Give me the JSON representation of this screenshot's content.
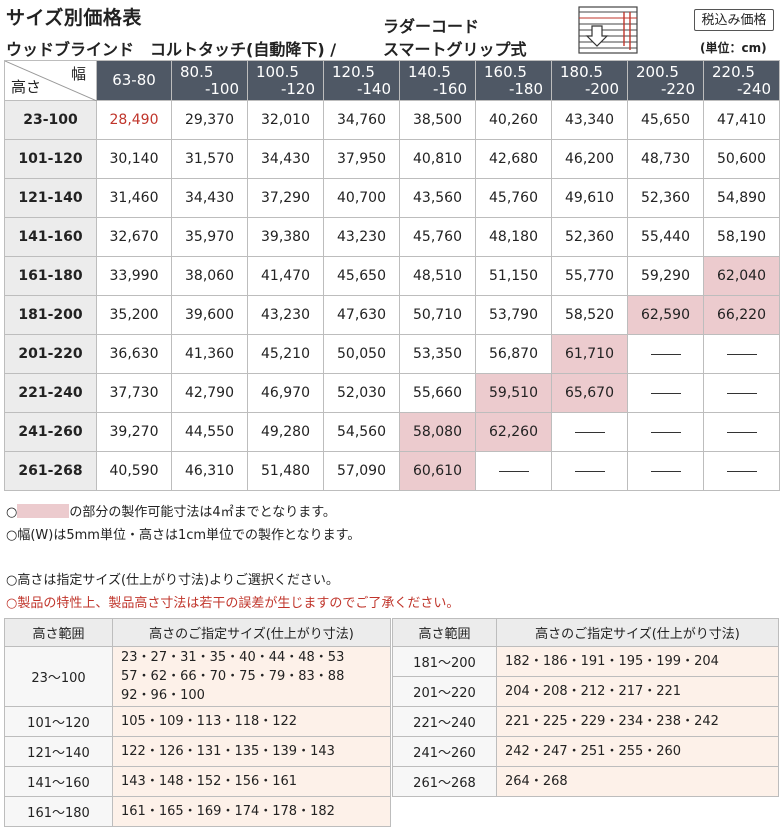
{
  "header": {
    "title": "サイズ別価格表",
    "subtitle": "ウッドブラインド　コルトタッチ(自動降下) /",
    "ladder": "ラダーコード",
    "smart": "スマートグリップ式",
    "tax_badge": "税込み価格",
    "unit": "(単位：cm)"
  },
  "price_table": {
    "corner_width_label": "幅",
    "corner_height_label": "高さ",
    "width_headers": [
      {
        "l1": "63-80",
        "l2": ""
      },
      {
        "l1": "80.5",
        "l2": "-100"
      },
      {
        "l1": "100.5",
        "l2": "-120"
      },
      {
        "l1": "120.5",
        "l2": "-140"
      },
      {
        "l1": "140.5",
        "l2": "-160"
      },
      {
        "l1": "160.5",
        "l2": "-180"
      },
      {
        "l1": "180.5",
        "l2": "-200"
      },
      {
        "l1": "200.5",
        "l2": "-220"
      },
      {
        "l1": "220.5",
        "l2": "-240"
      }
    ],
    "rows": [
      {
        "height": "23-100",
        "prices": [
          "28,490",
          "29,370",
          "32,010",
          "34,760",
          "38,500",
          "40,260",
          "43,340",
          "45,650",
          "47,410"
        ]
      },
      {
        "height": "101-120",
        "prices": [
          "30,140",
          "31,570",
          "34,430",
          "37,950",
          "40,810",
          "42,680",
          "46,200",
          "48,730",
          "50,600"
        ]
      },
      {
        "height": "121-140",
        "prices": [
          "31,460",
          "34,430",
          "37,290",
          "40,700",
          "43,560",
          "45,760",
          "49,610",
          "52,360",
          "54,890"
        ]
      },
      {
        "height": "141-160",
        "prices": [
          "32,670",
          "35,970",
          "39,380",
          "43,230",
          "45,760",
          "48,180",
          "52,360",
          "55,440",
          "58,190"
        ]
      },
      {
        "height": "161-180",
        "prices": [
          "33,990",
          "38,060",
          "41,470",
          "45,650",
          "48,510",
          "51,150",
          "55,770",
          "59,290",
          "62,040"
        ]
      },
      {
        "height": "181-200",
        "prices": [
          "35,200",
          "39,600",
          "43,230",
          "47,630",
          "50,710",
          "53,790",
          "58,520",
          "62,590",
          "66,220"
        ]
      },
      {
        "height": "201-220",
        "prices": [
          "36,630",
          "41,360",
          "45,210",
          "50,050",
          "53,350",
          "56,870",
          "61,710",
          "",
          ""
        ]
      },
      {
        "height": "221-240",
        "prices": [
          "37,730",
          "42,790",
          "46,970",
          "52,030",
          "55,660",
          "59,510",
          "65,670",
          "",
          ""
        ]
      },
      {
        "height": "241-260",
        "prices": [
          "39,270",
          "44,550",
          "49,280",
          "54,560",
          "58,080",
          "62,260",
          "",
          "",
          ""
        ]
      },
      {
        "height": "261-268",
        "prices": [
          "40,590",
          "46,310",
          "51,480",
          "57,090",
          "60,610",
          "",
          "",
          "",
          ""
        ]
      }
    ],
    "pink_cells": [
      [
        4,
        8
      ],
      [
        5,
        7
      ],
      [
        5,
        8
      ],
      [
        6,
        6
      ],
      [
        7,
        5
      ],
      [
        7,
        6
      ],
      [
        8,
        4
      ],
      [
        8,
        5
      ],
      [
        9,
        4
      ]
    ],
    "red_cells": [
      [
        0,
        0
      ]
    ],
    "colors": {
      "header_bg": "#4f5865",
      "pink": "#eccbce",
      "red_text": "#c0352b"
    }
  },
  "notes": {
    "n1_prefix": "○",
    "n1_suffix": "の部分の製作可能寸法は4㎡までとなります。",
    "n2": "○幅(W)は5mm単位・高さは1cm単位での製作となります。",
    "n3": "○高さは指定サイズ(仕上がり寸法)よりご選択ください。",
    "n4": "○製品の特性上、製品高さ寸法は若干の誤差が生じますのでご了承ください。"
  },
  "size_table_left": {
    "col_range": "高さ範囲",
    "col_sizes": "高さのご指定サイズ(仕上がり寸法)",
    "rows": [
      {
        "range": "23〜100",
        "sizes": [
          "23・27・31・35・40・44・48・53",
          "57・62・66・70・75・79・83・88",
          "92・96・100"
        ]
      },
      {
        "range": "101〜120",
        "sizes": [
          "105・109・113・118・122"
        ]
      },
      {
        "range": "121〜140",
        "sizes": [
          "122・126・131・135・139・143"
        ]
      },
      {
        "range": "141〜160",
        "sizes": [
          "143・148・152・156・161"
        ]
      },
      {
        "range": "161〜180",
        "sizes": [
          "161・165・169・174・178・182"
        ]
      }
    ]
  },
  "size_table_right": {
    "col_range": "高さ範囲",
    "col_sizes": "高さのご指定サイズ(仕上がり寸法)",
    "rows": [
      {
        "range": "181〜200",
        "sizes": [
          "182・186・191・195・199・204"
        ]
      },
      {
        "range": "201〜220",
        "sizes": [
          "204・208・212・217・221"
        ]
      },
      {
        "range": "221〜240",
        "sizes": [
          "221・225・229・234・238・242"
        ]
      },
      {
        "range": "241〜260",
        "sizes": [
          "242・247・251・255・260"
        ]
      },
      {
        "range": "261〜268",
        "sizes": [
          "264・268"
        ]
      }
    ]
  },
  "icons": {
    "blind": "window-blind-icon"
  }
}
